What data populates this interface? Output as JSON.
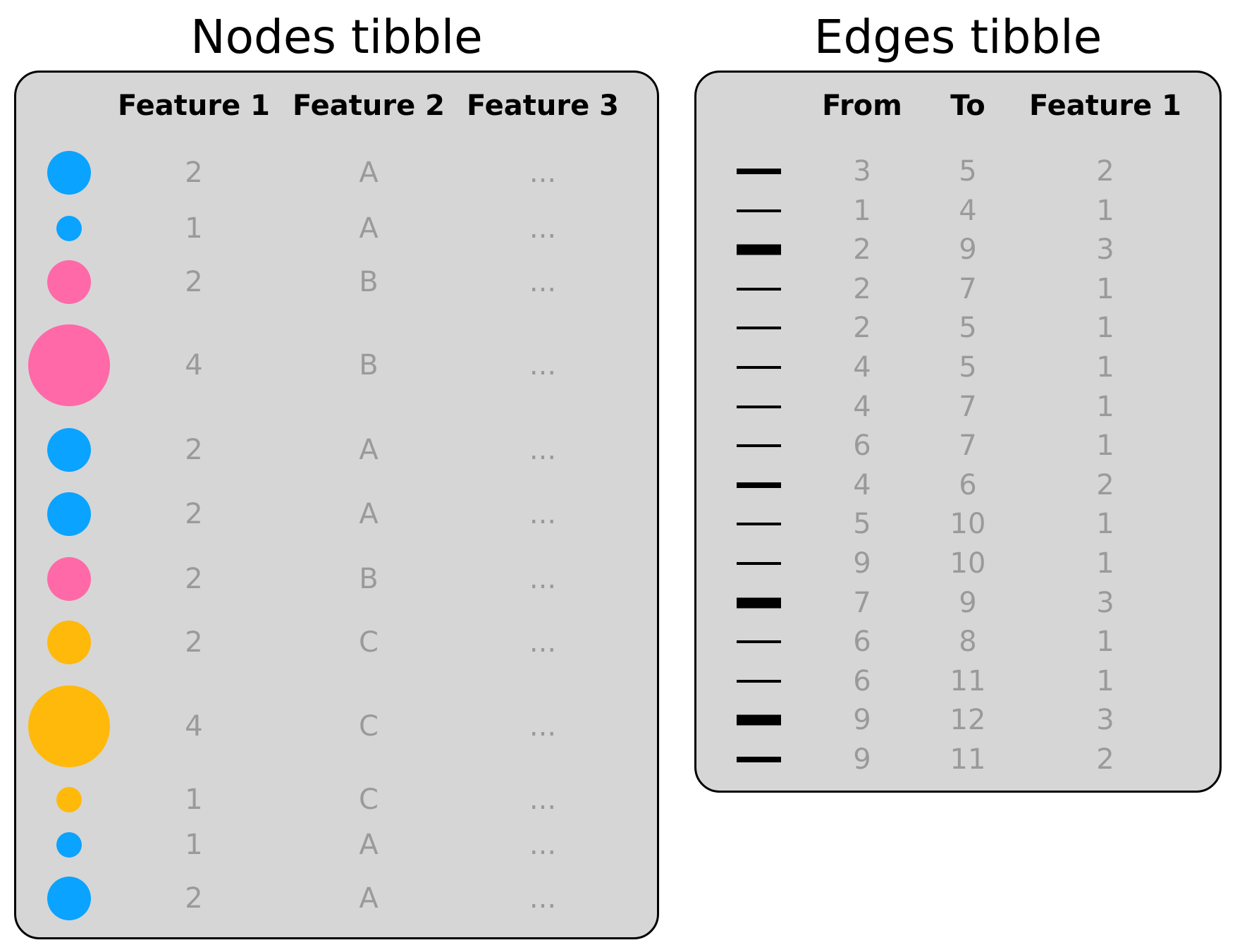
{
  "nodes": {
    "title": "Nodes tibble",
    "headers": [
      "Feature 1",
      "Feature 2",
      "Feature 3"
    ],
    "rows": [
      {
        "f1": "2",
        "f2": "A",
        "f3": "...",
        "color": "#0aa3ff"
      },
      {
        "f1": "1",
        "f2": "A",
        "f3": "...",
        "color": "#0aa3ff"
      },
      {
        "f1": "2",
        "f2": "B",
        "f3": "...",
        "color": "#ff69a8"
      },
      {
        "f1": "4",
        "f2": "B",
        "f3": "...",
        "color": "#ff69a8"
      },
      {
        "f1": "2",
        "f2": "A",
        "f3": "...",
        "color": "#0aa3ff"
      },
      {
        "f1": "2",
        "f2": "A",
        "f3": "...",
        "color": "#0aa3ff"
      },
      {
        "f1": "2",
        "f2": "B",
        "f3": "...",
        "color": "#ff69a8"
      },
      {
        "f1": "2",
        "f2": "C",
        "f3": "...",
        "color": "#ffb90a"
      },
      {
        "f1": "4",
        "f2": "C",
        "f3": "...",
        "color": "#ffb90a"
      },
      {
        "f1": "1",
        "f2": "C",
        "f3": "...",
        "color": "#ffb90a"
      },
      {
        "f1": "1",
        "f2": "A",
        "f3": "...",
        "color": "#0aa3ff"
      },
      {
        "f1": "2",
        "f2": "A",
        "f3": "...",
        "color": "#0aa3ff"
      }
    ]
  },
  "edges": {
    "title": "Edges tibble",
    "headers": [
      "From",
      "To",
      "Feature 1"
    ],
    "rows": [
      {
        "from": "3",
        "to": "5",
        "f1": "2"
      },
      {
        "from": "1",
        "to": "4",
        "f1": "1"
      },
      {
        "from": "2",
        "to": "9",
        "f1": "3"
      },
      {
        "from": "2",
        "to": "7",
        "f1": "1"
      },
      {
        "from": "2",
        "to": "5",
        "f1": "1"
      },
      {
        "from": "4",
        "to": "5",
        "f1": "1"
      },
      {
        "from": "4",
        "to": "7",
        "f1": "1"
      },
      {
        "from": "6",
        "to": "7",
        "f1": "1"
      },
      {
        "from": "4",
        "to": "6",
        "f1": "2"
      },
      {
        "from": "5",
        "to": "10",
        "f1": "1"
      },
      {
        "from": "9",
        "to": "10",
        "f1": "1"
      },
      {
        "from": "7",
        "to": "9",
        "f1": "3"
      },
      {
        "from": "6",
        "to": "8",
        "f1": "1"
      },
      {
        "from": "6",
        "to": "11",
        "f1": "1"
      },
      {
        "from": "9",
        "to": "12",
        "f1": "3"
      },
      {
        "from": "9",
        "to": "11",
        "f1": "2"
      }
    ]
  }
}
